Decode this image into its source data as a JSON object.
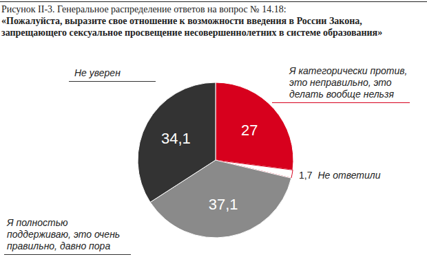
{
  "chart_data": {
    "type": "pie",
    "title": "Рисунок II-3. Генеральное распределение ответов на вопрос № 14.18:",
    "subtitle": "«Пожалуйста, выразите свое отношение к возможности введения в России Закона, запрещающего сексуальное просвещение несовершеннолетних в системе образования»",
    "categories": [
      "Я категорически против, это неправильно, это делать вообще нельзя",
      "Не ответили",
      "Я полностью поддерживаю, это очень правильно, давно пора",
      "Не уверен"
    ],
    "values": [
      27,
      1.7,
      37.1,
      34.1
    ],
    "value_labels": [
      "27",
      "1,7",
      "37,1",
      "34,1"
    ],
    "colors": [
      "#d7001d",
      "#ffffff",
      "#8a8a8a",
      "#333333"
    ],
    "data_labels": true
  }
}
